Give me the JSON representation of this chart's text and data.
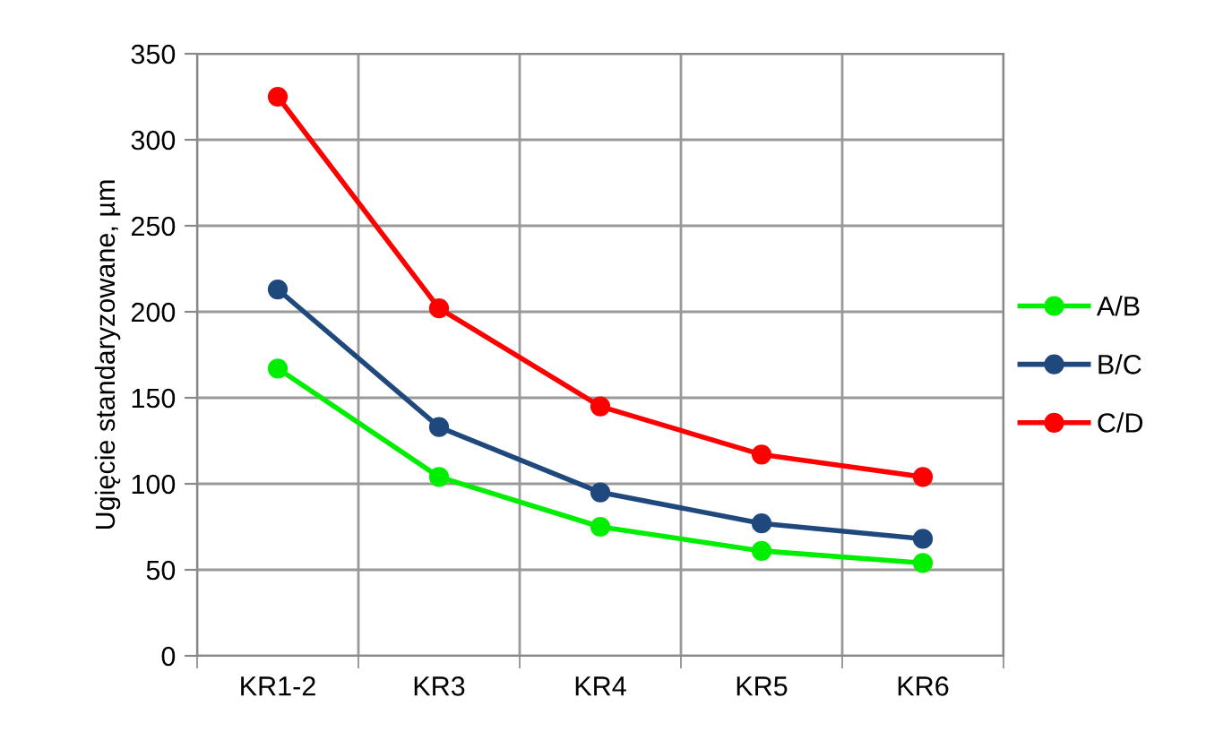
{
  "chart_data": {
    "type": "line",
    "ylabel": "Ugięcie standaryzowane, µm",
    "categories": [
      "KR1-2",
      "KR3",
      "KR4",
      "KR5",
      "KR6"
    ],
    "series": [
      {
        "name": "A/B",
        "color": "#00ee00",
        "values": [
          167,
          104,
          75,
          61,
          54
        ]
      },
      {
        "name": "B/C",
        "color": "#1f497d",
        "values": [
          213,
          133,
          95,
          77,
          68
        ]
      },
      {
        "name": "C/D",
        "color": "#ff0000",
        "values": [
          325,
          202,
          145,
          117,
          104
        ]
      }
    ],
    "ylim": [
      0,
      350
    ],
    "yticks": [
      0,
      50,
      100,
      150,
      200,
      250,
      300,
      350
    ],
    "grid": true,
    "legend": "right",
    "marker": "circle",
    "line_style": "solid"
  }
}
